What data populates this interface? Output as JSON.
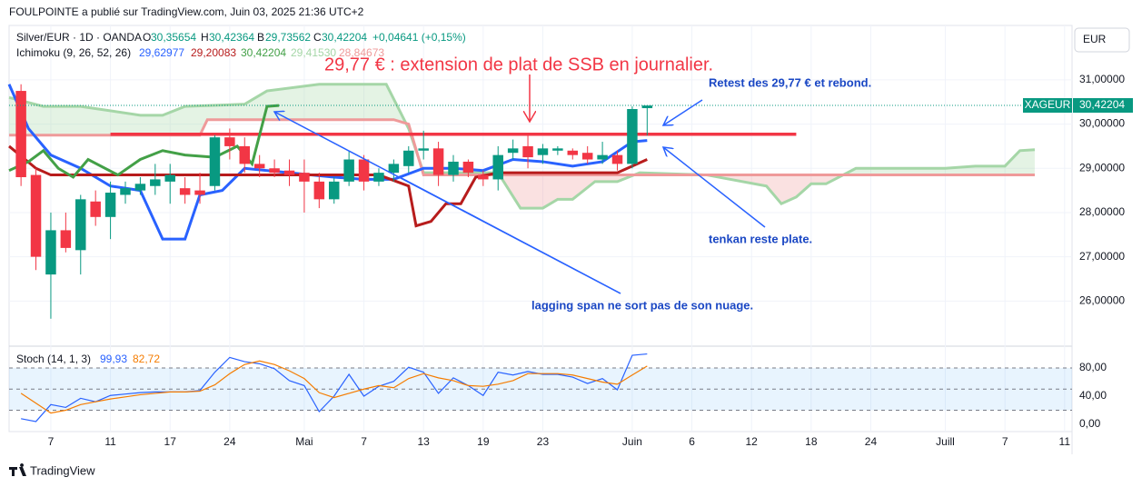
{
  "header": {
    "published": "FOULPOINTE a publié sur TradingView.com, Juin 03, 2025 21:36 UTC+2",
    "currency": "EUR",
    "footer": "TradingView"
  },
  "legend": {
    "symbol": "Silver/EUR · 1D · OANDA",
    "o": "O",
    "o_val": "30,35654",
    "h": "H",
    "h_val": "30,42364",
    "b": "B",
    "b_val": "29,73562",
    "c": "C",
    "c_val": "30,42204",
    "change": "+0,04641 (+0,15%)",
    "ichimoku": "Ichimoku (9, 26, 52, 26)",
    "ichi_vals": [
      "29,62977",
      "29,20083",
      "30,42204",
      "29,41530",
      "28,84673"
    ],
    "stoch": "Stoch (14, 1, 3)",
    "stoch_vals": [
      "99,93",
      "82,72"
    ]
  },
  "annotations": {
    "title": "29,77 € : extension de plat de SSB en journalier.",
    "retest": "Retest des 29,77 € et rebond.",
    "tenkan": "tenkan reste plate.",
    "lagging": "lagging span ne sort pas de son nuage."
  },
  "chart_data": [
    {
      "type": "candlestick",
      "up_color": "#089981",
      "down_color": "#f23645",
      "x": [
        0,
        1,
        2,
        3,
        4,
        5,
        6,
        7,
        8,
        9,
        10,
        11,
        12,
        13,
        14,
        15,
        16,
        17,
        18,
        19,
        20,
        21,
        22,
        23,
        24,
        25,
        26,
        27,
        28,
        29,
        30,
        31,
        32,
        33,
        34,
        35,
        36,
        37,
        38,
        39,
        40,
        41,
        42
      ],
      "open": [
        30.75,
        28.85,
        26.6,
        27.6,
        27.15,
        28.25,
        27.9,
        28.4,
        28.5,
        28.6,
        28.7,
        28.55,
        28.5,
        28.6,
        29.7,
        29.5,
        29.1,
        29.0,
        28.95,
        28.9,
        28.7,
        28.3,
        28.7,
        29.2,
        28.7,
        28.9,
        29.05,
        29.4,
        29.45,
        28.85,
        29.15,
        28.85,
        28.75,
        29.35,
        29.5,
        29.3,
        29.4,
        29.4,
        29.35,
        29.2,
        29.3,
        29.1,
        30.36
      ],
      "high": [
        30.9,
        29.0,
        28.0,
        28.0,
        28.4,
        28.5,
        28.7,
        28.7,
        28.8,
        29.1,
        29.1,
        28.8,
        28.9,
        29.75,
        29.9,
        29.7,
        29.3,
        29.2,
        29.2,
        29.2,
        28.9,
        28.8,
        29.4,
        29.3,
        29.0,
        29.2,
        29.5,
        29.85,
        29.6,
        29.3,
        29.2,
        28.95,
        29.5,
        29.65,
        29.8,
        29.55,
        29.5,
        29.45,
        29.5,
        29.6,
        29.4,
        30.4,
        30.42
      ],
      "low": [
        28.6,
        26.7,
        25.6,
        27.1,
        26.6,
        27.7,
        27.4,
        28.2,
        28.4,
        28.4,
        28.2,
        28.2,
        28.2,
        28.5,
        29.2,
        28.9,
        28.8,
        28.8,
        28.6,
        28.0,
        28.1,
        28.2,
        28.6,
        28.5,
        28.6,
        28.7,
        28.9,
        29.2,
        28.6,
        28.7,
        28.8,
        28.6,
        28.5,
        29.2,
        29.0,
        29.1,
        29.3,
        29.2,
        29.1,
        29.1,
        28.95,
        29.0,
        29.74
      ],
      "close": [
        28.8,
        27.0,
        27.6,
        27.2,
        28.3,
        27.9,
        28.45,
        28.55,
        28.65,
        28.75,
        28.85,
        28.4,
        28.4,
        29.7,
        29.5,
        29.1,
        29.0,
        28.9,
        28.85,
        28.7,
        28.3,
        28.7,
        29.2,
        28.7,
        28.9,
        29.1,
        29.4,
        29.45,
        28.85,
        29.15,
        28.9,
        28.75,
        29.3,
        29.45,
        29.25,
        29.45,
        29.45,
        29.3,
        29.2,
        29.3,
        29.1,
        30.34,
        30.42
      ],
      "lines": [
        {
          "color": "#2962ff",
          "width": 3,
          "x": [
            -0.8,
            0.5,
            2,
            4,
            6,
            8,
            9.5,
            11,
            12,
            13.5,
            15,
            18,
            21,
            23,
            25,
            27,
            29,
            31,
            33,
            35,
            37,
            39,
            41,
            42
          ],
          "values": [
            30.9,
            29.9,
            29.3,
            29.0,
            28.6,
            28.5,
            27.4,
            27.4,
            28.4,
            28.5,
            29.0,
            28.9,
            28.8,
            28.75,
            28.75,
            29.0,
            29.0,
            28.95,
            29.2,
            29.15,
            29.05,
            29.15,
            29.6,
            29.63
          ]
        },
        {
          "color": "#b71c1c",
          "width": 3,
          "x": [
            -0.8,
            1,
            2,
            18,
            24,
            26,
            26.5,
            27.5,
            28.5,
            29.5,
            30.5,
            32,
            40,
            42
          ],
          "values": [
            29.5,
            29.0,
            28.85,
            28.85,
            28.85,
            28.6,
            27.7,
            27.8,
            28.2,
            28.2,
            28.8,
            28.9,
            28.9,
            29.2
          ]
        },
        {
          "color": "#43a047",
          "width": 3,
          "x": [
            -0.8,
            0.5,
            1.5,
            2.5,
            3.5,
            4.5,
            6.5,
            8,
            9.5,
            11,
            13,
            14.5,
            15.5,
            16.5,
            17.3
          ],
          "values": [
            28.95,
            29.15,
            29.4,
            29.0,
            28.8,
            29.2,
            28.85,
            29.2,
            29.4,
            29.3,
            29.25,
            29.5,
            29.1,
            30.4,
            30.42
          ]
        }
      ],
      "span_a": {
        "color": "#a5d6a7",
        "x": [
          -0.8,
          1.5,
          4,
          8,
          9.5,
          11,
          15,
          16.5,
          20,
          24.5,
          26,
          27,
          32,
          33.5,
          35,
          36,
          37,
          38.5,
          40,
          41.5,
          46,
          50,
          51,
          52,
          53,
          54,
          56,
          62,
          64,
          66,
          67,
          68
        ],
        "values": [
          30.6,
          30.4,
          30.4,
          30.2,
          30.2,
          30.4,
          30.45,
          30.75,
          30.9,
          30.9,
          29.9,
          28.9,
          28.9,
          28.1,
          28.1,
          28.3,
          28.3,
          28.7,
          28.7,
          28.9,
          28.85,
          28.6,
          28.2,
          28.35,
          28.65,
          28.65,
          29.0,
          29.0,
          29.05,
          29.05,
          29.4,
          29.42
        ]
      },
      "span_b": {
        "color": "#ef9a9a",
        "x": [
          -0.8,
          12,
          12.5,
          25,
          26,
          27,
          68
        ],
        "values": [
          29.75,
          29.75,
          30.1,
          30.1,
          30.0,
          28.85,
          28.85
        ]
      },
      "level": {
        "value": 29.77,
        "x": [
          6,
          52
        ],
        "color": "#f23645"
      },
      "symbol": "XAGEUR",
      "last_price": {
        "value": 30.42204,
        "label": "30,42204"
      },
      "xlim": [
        -0.8,
        70.5
      ],
      "ylim": [
        25.0,
        32.23
      ],
      "xticks": [
        {
          "value": 2,
          "label": "7"
        },
        {
          "value": 6,
          "label": "11"
        },
        {
          "value": 10,
          "label": "17"
        },
        {
          "value": 14,
          "label": "24"
        },
        {
          "value": 19,
          "label": "Mai"
        },
        {
          "value": 23,
          "label": "7"
        },
        {
          "value": 27,
          "label": "13"
        },
        {
          "value": 31,
          "label": "19"
        },
        {
          "value": 35,
          "label": "23"
        },
        {
          "value": 41,
          "label": "Juin"
        },
        {
          "value": 45,
          "label": "6"
        },
        {
          "value": 49,
          "label": "12"
        },
        {
          "value": 53,
          "label": "18"
        },
        {
          "value": 57,
          "label": "24"
        },
        {
          "value": 62,
          "label": "Juill"
        },
        {
          "value": 66,
          "label": "7"
        },
        {
          "value": 70,
          "label": "11"
        }
      ],
      "yticks": [
        {
          "value": 31,
          "label": "31,00000"
        },
        {
          "value": 30,
          "label": "30,00000"
        },
        {
          "value": 29,
          "label": "29,00000"
        },
        {
          "value": 28,
          "label": "28,00000"
        },
        {
          "value": 27,
          "label": "27,00000"
        },
        {
          "value": 26,
          "label": "26,00000"
        }
      ],
      "grid": true
    },
    {
      "type": "line",
      "x": [
        0,
        1,
        2,
        3,
        4,
        5,
        6,
        7,
        8,
        9,
        10,
        11,
        12,
        13,
        14,
        15,
        16,
        17,
        18,
        19,
        20,
        21,
        22,
        23,
        24,
        25,
        26,
        27,
        28,
        29,
        30,
        31,
        32,
        33,
        34,
        35,
        36,
        37,
        38,
        39,
        40,
        41,
        42
      ],
      "series": [
        {
          "color": "#2962ff",
          "values": [
            8,
            4,
            28,
            24,
            37,
            32,
            41,
            43,
            45,
            46,
            46,
            46,
            48,
            74,
            95,
            89,
            86,
            79,
            62,
            55,
            18,
            40,
            71,
            40,
            54,
            61,
            81,
            74,
            44,
            66,
            55,
            41,
            74,
            70,
            75,
            71,
            71,
            67,
            58,
            65,
            49,
            98,
            99.93
          ]
        },
        {
          "color": "#f57c00",
          "values": [
            44,
            30,
            16,
            20,
            28,
            32,
            36,
            39,
            42,
            44,
            46,
            46,
            47,
            56,
            72,
            85,
            90,
            85,
            76,
            65,
            45,
            38,
            44,
            50,
            55,
            52,
            65,
            72,
            66,
            62,
            55,
            54,
            57,
            62,
            72,
            72,
            72,
            70,
            65,
            60,
            57,
            70,
            82.72
          ]
        }
      ],
      "bands": [
        20,
        50,
        80
      ],
      "xlim": [
        -0.8,
        70.5
      ],
      "ylim": [
        -10.3,
        108.4
      ],
      "yticks": [
        {
          "value": 80,
          "label": "80,00"
        },
        {
          "value": 40,
          "label": "40,00"
        },
        {
          "value": 0,
          "label": "0,00"
        }
      ]
    }
  ]
}
